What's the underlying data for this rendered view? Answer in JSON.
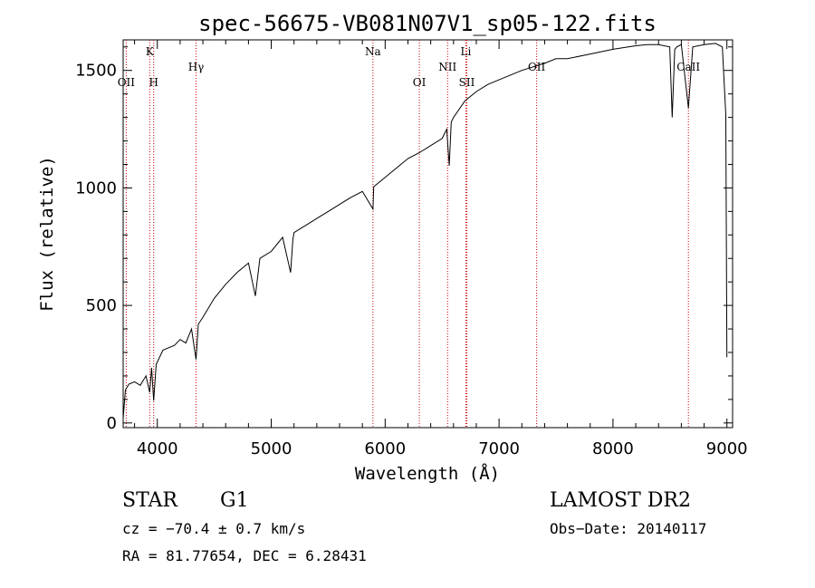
{
  "chart_data": {
    "type": "line",
    "title": "spec-56675-VB081N07V1_sp05-122.fits",
    "xlabel": "Wavelength (Å)",
    "ylabel": "Flux (relative)",
    "xlim": [
      3700,
      9050
    ],
    "ylim": [
      -20,
      1630
    ],
    "xticks": [
      4000,
      5000,
      6000,
      7000,
      8000,
      9000
    ],
    "yticks": [
      0,
      500,
      1000,
      1500
    ],
    "grid": false,
    "series": [
      {
        "x": [
          3700,
          3720,
          3750,
          3800,
          3850,
          3900,
          3933,
          3950,
          3968,
          3990,
          4050,
          4100,
          4150,
          4200,
          4250,
          4300,
          4340,
          4360,
          4400,
          4500,
          4600,
          4700,
          4800,
          4861,
          4900,
          5000,
          5100,
          5170,
          5190,
          5200,
          5300,
          5400,
          5500,
          5600,
          5700,
          5800,
          5893,
          5900,
          6000,
          6100,
          6200,
          6300,
          6400,
          6500,
          6540,
          6563,
          6580,
          6600,
          6700,
          6800,
          6900,
          7000,
          7200,
          7400,
          7500,
          7600,
          7800,
          8000,
          8200,
          8300,
          8400,
          8498,
          8520,
          8542,
          8560,
          8600,
          8662,
          8700,
          8800,
          8900,
          8960,
          8990,
          9000
        ],
        "y": [
          20,
          140,
          165,
          175,
          160,
          200,
          130,
          235,
          95,
          250,
          310,
          320,
          330,
          355,
          340,
          400,
          270,
          420,
          450,
          530,
          590,
          640,
          680,
          540,
          700,
          730,
          790,
          640,
          780,
          810,
          840,
          870,
          900,
          930,
          960,
          985,
          910,
          1005,
          1045,
          1085,
          1125,
          1150,
          1180,
          1210,
          1250,
          1095,
          1280,
          1300,
          1370,
          1410,
          1440,
          1460,
          1500,
          1530,
          1550,
          1550,
          1570,
          1590,
          1605,
          1610,
          1610,
          1600,
          1300,
          1590,
          1600,
          1610,
          1340,
          1600,
          1610,
          1615,
          1600,
          1310,
          280
        ]
      }
    ],
    "spectral_lines": [
      {
        "label": "OII",
        "x": 3727,
        "row": 2
      },
      {
        "label": "K",
        "x": 3933,
        "row": 0
      },
      {
        "label": "H",
        "x": 3968,
        "row": 2
      },
      {
        "label": "Hγ",
        "x": 4340,
        "row": 1
      },
      {
        "label": "Na",
        "x": 5893,
        "row": 0
      },
      {
        "label": "OI",
        "x": 6300,
        "row": 2
      },
      {
        "label": "NII",
        "x": 6548,
        "row": 1
      },
      {
        "label": "Li",
        "x": 6708,
        "row": 0
      },
      {
        "label": "SII",
        "x": 6717,
        "row": 2
      },
      {
        "label": "OII",
        "x": 7330,
        "row": 1
      },
      {
        "label": "CaII",
        "x": 8662,
        "row": 1
      }
    ]
  },
  "info": {
    "object_class": "STAR",
    "subclass": "G1",
    "survey": "LAMOST DR2",
    "cz": "cz = −70.4 ± 0.7 km/s",
    "obs_date": "Obs−Date: 20140117",
    "coords": "RA =  81.77654, DEC =   6.28431"
  }
}
